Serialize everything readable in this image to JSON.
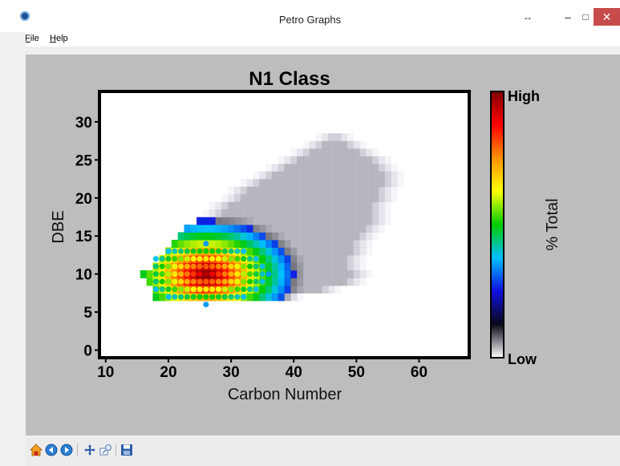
{
  "window": {
    "title": "Petro Graphs",
    "resize_glyph": "↔",
    "minimize_glyph": "–",
    "maximize_glyph": "□",
    "close_glyph": "✕"
  },
  "menu": {
    "items": [
      {
        "label": "File",
        "mnemonic": "F",
        "rest": "ile"
      },
      {
        "label": "Help",
        "mnemonic": "H",
        "rest": "elp"
      }
    ]
  },
  "colors": {
    "plot_background": "#bdbdbd",
    "close_button": "#c74b4b"
  },
  "colorbar": {
    "label": "% Total",
    "high_label": "High",
    "low_label": "Low",
    "stops": [
      "#ffffff",
      "#0a0a1a",
      "#1010e0",
      "#00c0ff",
      "#00cc00",
      "#ffff00",
      "#ff9000",
      "#ff0000",
      "#800000"
    ]
  },
  "toolbar": {
    "icons": [
      "home-icon",
      "back-icon",
      "forward-icon",
      "pan-icon",
      "zoom-icon",
      "save-icon"
    ]
  },
  "chart_data": {
    "type": "heatmap",
    "title": "N1  Class",
    "xlabel": "Carbon Number",
    "ylabel": "DBE",
    "xlim": [
      9,
      68
    ],
    "ylim": [
      -1,
      34
    ],
    "xticks": [
      10,
      20,
      30,
      40,
      50,
      60
    ],
    "yticks": [
      0,
      5,
      10,
      15,
      20,
      25,
      30
    ],
    "grid": false,
    "legend": "colorbar-right",
    "hotspot": {
      "x": 26,
      "y": 10
    },
    "envelope": [
      {
        "y": 7,
        "xmin": 18,
        "xmax": 42
      },
      {
        "y": 8,
        "xmin": 18,
        "xmax": 48
      },
      {
        "y": 9,
        "xmin": 17,
        "xmax": 52
      },
      {
        "y": 10,
        "xmin": 16,
        "xmax": 53
      },
      {
        "y": 11,
        "xmin": 18,
        "xmax": 52
      },
      {
        "y": 12,
        "xmin": 19,
        "xmax": 52
      },
      {
        "y": 13,
        "xmin": 20,
        "xmax": 53
      },
      {
        "y": 14,
        "xmin": 21,
        "xmax": 53
      },
      {
        "y": 15,
        "xmin": 22,
        "xmax": 54
      },
      {
        "y": 16,
        "xmin": 23,
        "xmax": 55
      },
      {
        "y": 17,
        "xmin": 24,
        "xmax": 56
      },
      {
        "y": 18,
        "xmin": 25,
        "xmax": 56
      },
      {
        "y": 19,
        "xmin": 26,
        "xmax": 56
      },
      {
        "y": 20,
        "xmin": 28,
        "xmax": 57
      },
      {
        "y": 21,
        "xmin": 29,
        "xmax": 57
      },
      {
        "y": 22,
        "xmin": 31,
        "xmax": 58
      },
      {
        "y": 23,
        "xmin": 33,
        "xmax": 58
      },
      {
        "y": 24,
        "xmin": 35,
        "xmax": 57
      },
      {
        "y": 25,
        "xmin": 37,
        "xmax": 56
      },
      {
        "y": 26,
        "xmin": 39,
        "xmax": 54
      },
      {
        "y": 27,
        "xmin": 41,
        "xmax": 52
      },
      {
        "y": 28,
        "xmin": 43,
        "xmax": 50
      }
    ]
  }
}
